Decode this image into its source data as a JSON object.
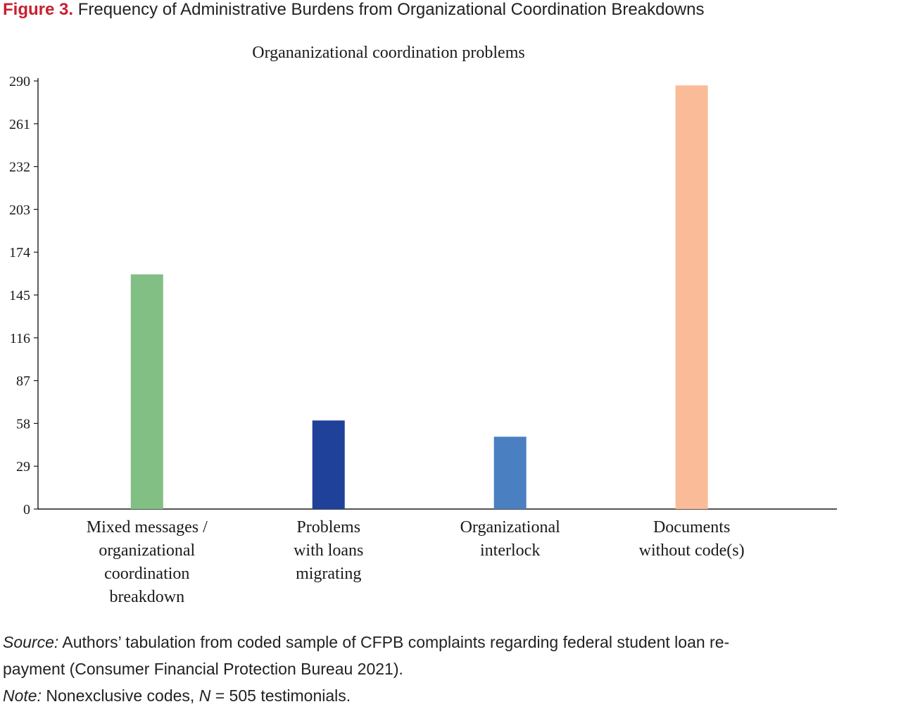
{
  "figure": {
    "label": "Figure 3.",
    "title": "Frequency of Administrative Burdens from Organizational Coordination Breakdowns"
  },
  "chart_data": {
    "type": "bar",
    "title": "Organanizational coordination problems",
    "xlabel": "",
    "ylabel": "",
    "categories": [
      [
        "Mixed messages /",
        "organizational",
        "coordination",
        "breakdown"
      ],
      [
        "Problems",
        "with loans",
        "migrating"
      ],
      [
        "Organizational",
        "interlock"
      ],
      [
        "Documents",
        "without code(s)"
      ]
    ],
    "values": [
      159,
      60,
      49,
      287
    ],
    "colors": [
      "#82bf84",
      "#20419a",
      "#4a7fc1",
      "#f9bb98"
    ],
    "yticks": [
      "0",
      "29",
      "58",
      "87",
      "116",
      "145",
      "174",
      "203",
      "232",
      "261",
      "290"
    ],
    "ylim": [
      0,
      290
    ],
    "grid": false,
    "legend": "none"
  },
  "source": {
    "label": "Source:",
    "line1": " Authors’ tabulation from coded sample of CFPB complaints regarding federal student loan re-",
    "line2": "payment (Consumer Financial Protection Bureau 2021)."
  },
  "note": {
    "label": "Note:",
    "text1": " Nonexclusive codes, ",
    "n_symbol": "N",
    "text2": " = 505 testimonials."
  }
}
